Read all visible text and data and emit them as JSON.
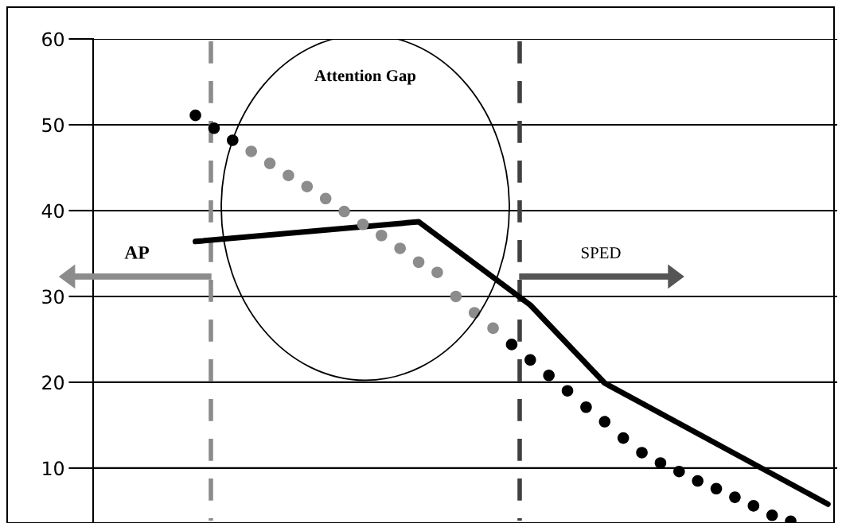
{
  "chart_data": {
    "type": "scatter",
    "categories": [
      null,
      null,
      null,
      null,
      null,
      null,
      null,
      null,
      null,
      null,
      null,
      null,
      null,
      null,
      null,
      null,
      null,
      null,
      null,
      null,
      null,
      null,
      null,
      null,
      null,
      null,
      null,
      null,
      null,
      null,
      null,
      null,
      null,
      null,
      null,
      null,
      null,
      null,
      null,
      null
    ],
    "series": [
      {
        "type": "scatter",
        "marker": "circle",
        "colors": [
          null,
          null,
          null,
          null,
          null,
          "#000000",
          "#000000",
          "#000000",
          "#8c8c8c",
          "#8c8c8c",
          "#8c8c8c",
          "#8c8c8c",
          "#8c8c8c",
          "#8c8c8c",
          "#8c8c8c",
          "#8c8c8c",
          "#8c8c8c",
          "#8c8c8c",
          "#8c8c8c",
          "#8c8c8c",
          "#8c8c8c",
          "#8c8c8c",
          "#000000",
          "#000000",
          "#000000",
          "#000000",
          "#000000",
          "#000000",
          "#000000",
          "#000000",
          "#000000",
          "#000000",
          "#000000",
          "#000000",
          "#000000",
          "#000000",
          "#000000",
          "#000000",
          null,
          null
        ],
        "values": [
          null,
          null,
          null,
          null,
          null,
          51.1,
          49.6,
          48.2,
          46.9,
          45.5,
          44.1,
          42.8,
          41.4,
          39.9,
          38.4,
          37.1,
          35.6,
          34.0,
          32.8,
          30.0,
          28.1,
          26.3,
          24.4,
          22.6,
          20.8,
          19.0,
          17.1,
          15.4,
          13.5,
          11.8,
          10.6,
          9.6,
          8.5,
          7.6,
          6.6,
          5.6,
          4.5,
          3.8,
          null,
          null
        ]
      },
      {
        "type": "line",
        "color": "#000000",
        "values": [
          null,
          null,
          null,
          null,
          null,
          36.4,
          null,
          null,
          null,
          null,
          null,
          null,
          null,
          null,
          null,
          null,
          null,
          38.7,
          null,
          null,
          null,
          null,
          null,
          29.0,
          null,
          null,
          null,
          19.9,
          null,
          null,
          null,
          null,
          null,
          null,
          null,
          null,
          null,
          null,
          null,
          5.8
        ]
      }
    ],
    "ylim": [
      3.6,
      60
    ],
    "yticks": [
      10,
      20,
      30,
      40,
      50,
      60
    ],
    "grid": "y",
    "tick_labels": "y",
    "annotations": [
      "Attention Gap",
      "AP",
      "SPED"
    ]
  }
}
